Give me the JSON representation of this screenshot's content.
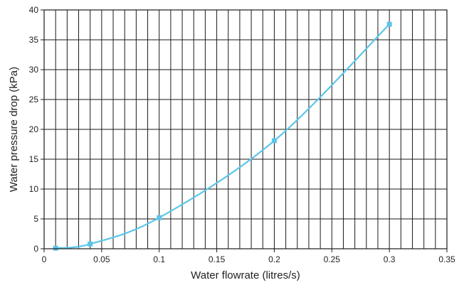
{
  "chart_data": {
    "type": "line",
    "xlabel": "Water flowrate (litres/s)",
    "ylabel": "Water pressure drop (kPa)",
    "xlim": [
      0,
      0.35
    ],
    "ylim": [
      0,
      40
    ],
    "x_tick_values": [
      0,
      0.05,
      0.1,
      0.15,
      0.2,
      0.25,
      0.3,
      0.35
    ],
    "x_tick_labels": [
      "0",
      "0.05",
      "0.1",
      "0.15",
      "0.2",
      "0.25",
      "0.3",
      "0.35"
    ],
    "y_tick_values": [
      0,
      5,
      10,
      15,
      20,
      25,
      30,
      35,
      40
    ],
    "y_tick_labels": [
      "0",
      "5",
      "10",
      "15",
      "20",
      "25",
      "30",
      "35",
      "40"
    ],
    "grid": true,
    "minor_x_grid_step": 0.01,
    "series": [
      {
        "color": "#5bc6ea",
        "marker": "square",
        "x": [
          0.01,
          0.04,
          0.1,
          0.2,
          0.3
        ],
        "y": [
          0.1,
          0.8,
          5.2,
          18.1,
          37.6
        ]
      }
    ]
  }
}
